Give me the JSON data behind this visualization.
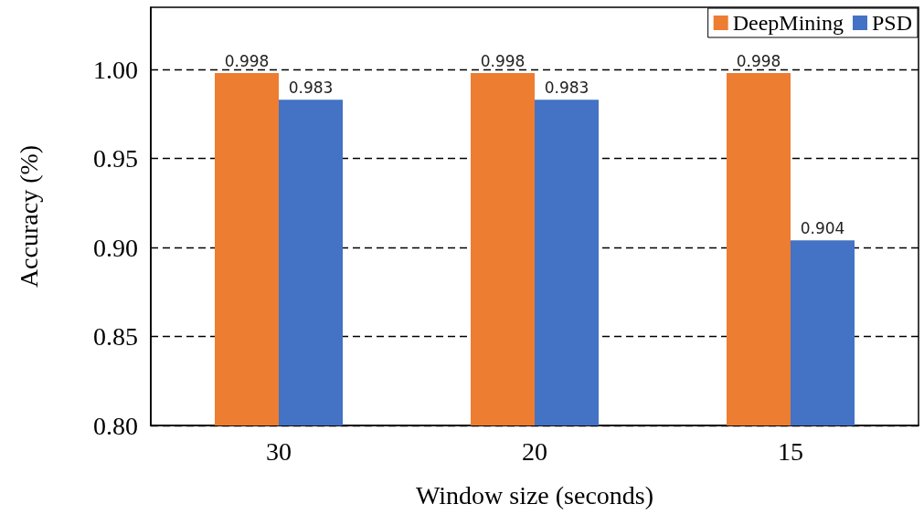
{
  "chart_data": {
    "type": "bar",
    "xlabel": "Window size (seconds)",
    "ylabel": "Accuracy (%)",
    "categories": [
      "30",
      "20",
      "15"
    ],
    "series": [
      {
        "name": "DeepMining",
        "color": "#ed7d31",
        "values": [
          0.998,
          0.998,
          0.998
        ]
      },
      {
        "name": "PSD",
        "color": "#4472c4",
        "values": [
          0.983,
          0.983,
          0.904
        ]
      }
    ],
    "ylim": [
      0.8,
      1.035
    ],
    "yticks": [
      {
        "value": 0.8,
        "label": "0.80"
      },
      {
        "value": 0.85,
        "label": "0.85"
      },
      {
        "value": 0.9,
        "label": "0.90"
      },
      {
        "value": 0.95,
        "label": "0.95"
      },
      {
        "value": 1.0,
        "label": "1.00"
      }
    ],
    "grid": "y",
    "legend": "top right",
    "data_labels": true
  }
}
